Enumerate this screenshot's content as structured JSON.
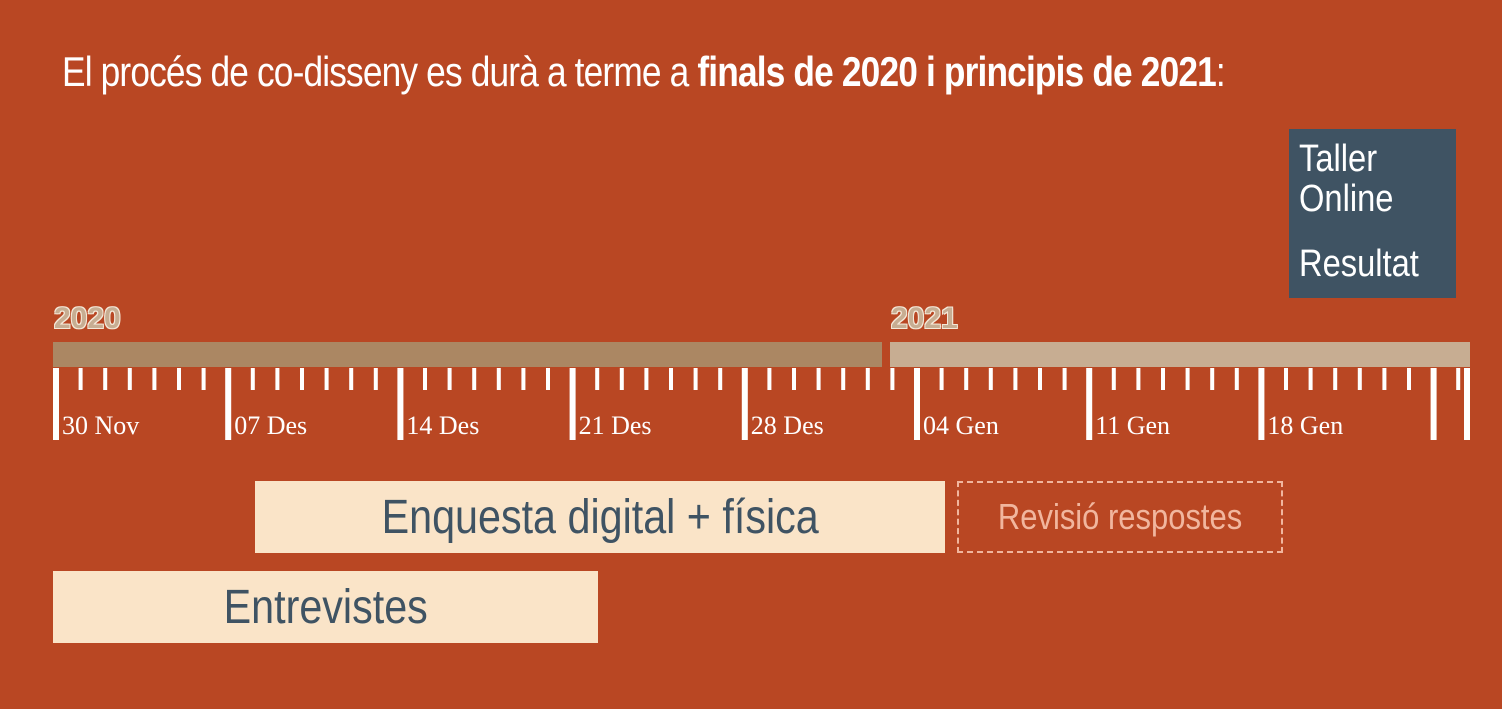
{
  "headline": {
    "prefix": "El procés de co-disseny es durà a terme a ",
    "bold": "finals de 2020 i principis de 2021",
    "suffix": ":"
  },
  "side_box": {
    "line1": "Taller",
    "line2": "Online",
    "line3": "Resultat"
  },
  "timeline": {
    "year_2020": "2020",
    "year_2021": "2021",
    "dates": [
      "30 Nov",
      "07 Des",
      "14 Des",
      "21 Des",
      "28 Des",
      "04 Gen",
      "11 Gen",
      "18 Gen"
    ]
  },
  "tasks": {
    "survey": "Enquesta digital + física",
    "review": "Revisió respostes",
    "interviews": "Entrevistes"
  },
  "colors": {
    "background": "#b94723",
    "bar_2020": "#ab8763",
    "bar_2021": "#c7ad92",
    "task_fill": "#fae4c8",
    "dark_box": "#3f5363"
  }
}
